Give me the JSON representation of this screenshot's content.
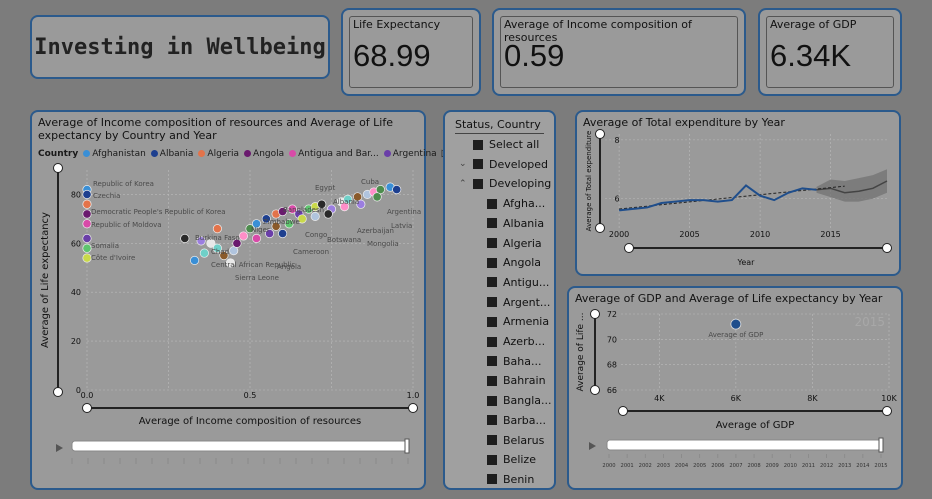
{
  "dashboard_title": "Investing in Wellbeing",
  "kpis": [
    {
      "label": "Life Expectancy",
      "value": "68.99"
    },
    {
      "label": "Average of Income composition of resources",
      "value": "0.59"
    },
    {
      "label": "Average of GDP",
      "value": "6.34K"
    }
  ],
  "scatter": {
    "title": "Average of Income composition of resources and Average of Life expectancy by Country and Year",
    "legend_label": "Country",
    "legend_items": [
      {
        "name": "Afghanistan",
        "color": "#3a8fd6"
      },
      {
        "name": "Albania",
        "color": "#1d3f8f"
      },
      {
        "name": "Algeria",
        "color": "#e3734a"
      },
      {
        "name": "Angola",
        "color": "#6a1a6e"
      },
      {
        "name": "Antigua and Bar...",
        "color": "#d84aa8"
      },
      {
        "name": "Argentina",
        "color": "#6a3ea8"
      }
    ],
    "point_labels": [
      "Republic of Korea",
      "Czechia",
      "Democratic People's Republic of Korea",
      "Republic of Moldova",
      "Somalia",
      "Côte d'Ivoire",
      "Egypt",
      "Cuba",
      "Bangladesh",
      "Zimbabwe",
      "Burkina Faso",
      "Chad",
      "Central African Republic",
      "Sierra Leone",
      "Angola",
      "Cameroon",
      "Botswana",
      "Mongolia",
      "Latvia",
      "Argentina",
      "Niger",
      "Congo",
      "Azerbaijan",
      "Albania"
    ],
    "xlabel": "Average of Income composition of resources",
    "ylabel": "Average of Life expectancy",
    "x_ticks": [
      "0.0",
      "0.5",
      "1.0"
    ],
    "y_ticks": [
      "80",
      "60",
      "40",
      "20",
      "0"
    ]
  },
  "slicer": {
    "header": "Status, Country",
    "items": [
      {
        "label": "Select all",
        "level": 0,
        "caret": ""
      },
      {
        "label": "Developed",
        "level": 0,
        "caret": "⌄"
      },
      {
        "label": "Developing",
        "level": 0,
        "caret": "⌃"
      },
      {
        "label": "Afgha...",
        "level": 1,
        "caret": ""
      },
      {
        "label": "Albania",
        "level": 1,
        "caret": ""
      },
      {
        "label": "Algeria",
        "level": 1,
        "caret": ""
      },
      {
        "label": "Angola",
        "level": 1,
        "caret": ""
      },
      {
        "label": "Antigu...",
        "level": 1,
        "caret": ""
      },
      {
        "label": "Argent...",
        "level": 1,
        "caret": ""
      },
      {
        "label": "Armenia",
        "level": 1,
        "caret": ""
      },
      {
        "label": "Azerb...",
        "level": 1,
        "caret": ""
      },
      {
        "label": "Baha...",
        "level": 1,
        "caret": ""
      },
      {
        "label": "Bahrain",
        "level": 1,
        "caret": ""
      },
      {
        "label": "Bangla...",
        "level": 1,
        "caret": ""
      },
      {
        "label": "Barba...",
        "level": 1,
        "caret": ""
      },
      {
        "label": "Belarus",
        "level": 1,
        "caret": ""
      },
      {
        "label": "Belize",
        "level": 1,
        "caret": ""
      },
      {
        "label": "Benin",
        "level": 1,
        "caret": ""
      }
    ]
  },
  "expenditure": {
    "title": "Average of Total expenditure by Year",
    "ylabel": "Average of Total expenditure",
    "xlabel": "Year",
    "x_ticks": [
      "2000",
      "2005",
      "2010",
      "2015"
    ],
    "y_ticks": [
      "8",
      "6"
    ],
    "line_color": "#1f4e8c"
  },
  "gdp_chart": {
    "title": "Average of GDP and Average of Life expectancy by Year",
    "ylabel": "Average of Life ...",
    "xlabel": "Average of GDP",
    "x_ticks": [
      "4K",
      "6K",
      "8K",
      "10K"
    ],
    "y_ticks": [
      "72",
      "70",
      "68",
      "66"
    ],
    "point_label": "Average of GDP",
    "watermark": "2015",
    "timeline_years": [
      "2000",
      "2001",
      "2002",
      "2003",
      "2004",
      "2005",
      "2006",
      "2007",
      "2008",
      "2009",
      "2010",
      "2011",
      "2012",
      "2013",
      "2014",
      "2015"
    ]
  },
  "chart_data": [
    {
      "type": "scatter",
      "title": "Average of Income composition of resources and Average of Life expectancy by Country and Year",
      "xlabel": "Average of Income composition of resources",
      "ylabel": "Average of Life expectancy",
      "xlim": [
        0,
        1
      ],
      "ylim": [
        0,
        90
      ],
      "series": [
        {
          "name": "Countries",
          "points": [
            [
              0.0,
              82
            ],
            [
              0.0,
              80
            ],
            [
              0.0,
              76
            ],
            [
              0.0,
              72
            ],
            [
              0.0,
              68
            ],
            [
              0.0,
              62
            ],
            [
              0.0,
              58
            ],
            [
              0.0,
              54
            ],
            [
              0.3,
              62
            ],
            [
              0.35,
              61
            ],
            [
              0.38,
              60
            ],
            [
              0.4,
              58
            ],
            [
              0.42,
              55
            ],
            [
              0.45,
              57
            ],
            [
              0.48,
              63
            ],
            [
              0.5,
              66
            ],
            [
              0.52,
              68
            ],
            [
              0.55,
              70
            ],
            [
              0.58,
              72
            ],
            [
              0.6,
              73
            ],
            [
              0.63,
              74
            ],
            [
              0.65,
              72
            ],
            [
              0.68,
              74
            ],
            [
              0.7,
              75
            ],
            [
              0.72,
              76
            ],
            [
              0.75,
              74
            ],
            [
              0.78,
              77
            ],
            [
              0.8,
              78
            ],
            [
              0.83,
              79
            ],
            [
              0.86,
              80
            ],
            [
              0.88,
              81
            ],
            [
              0.9,
              82
            ],
            [
              0.93,
              83
            ],
            [
              0.95,
              82
            ],
            [
              0.4,
              66
            ],
            [
              0.46,
              60
            ],
            [
              0.52,
              62
            ],
            [
              0.56,
              64
            ],
            [
              0.62,
              68
            ],
            [
              0.66,
              70
            ],
            [
              0.74,
              72
            ],
            [
              0.84,
              76
            ],
            [
              0.44,
              52
            ],
            [
              0.36,
              56
            ],
            [
              0.58,
              67
            ],
            [
              0.7,
              71
            ],
            [
              0.79,
              75
            ],
            [
              0.89,
              79
            ],
            [
              0.33,
              53
            ],
            [
              0.6,
              64
            ]
          ]
        }
      ]
    },
    {
      "type": "line",
      "title": "Average of Total expenditure by Year",
      "xlabel": "Year",
      "ylabel": "Average of Total expenditure",
      "x": [
        2000,
        2001,
        2002,
        2003,
        2004,
        2005,
        2006,
        2007,
        2008,
        2009,
        2010,
        2011,
        2012,
        2013,
        2014
      ],
      "series": [
        {
          "name": "Average of Total expenditure",
          "values": [
            5.6,
            5.65,
            5.7,
            5.85,
            5.9,
            5.95,
            5.95,
            5.9,
            5.95,
            6.45,
            6.1,
            5.95,
            6.2,
            6.35,
            6.3
          ]
        }
      ],
      "forecast": {
        "x": [
          2014,
          2015,
          2016,
          2017,
          2018,
          2019
        ],
        "values": [
          6.3,
          6.35,
          6.2,
          6.25,
          6.35,
          6.6
        ],
        "upper": [
          6.4,
          6.65,
          6.6,
          6.7,
          6.8,
          7.0
        ],
        "lower": [
          6.2,
          6.05,
          5.9,
          5.9,
          6.0,
          6.2
        ]
      },
      "xlim": [
        1999,
        2019
      ],
      "ylim": [
        5,
        8.2
      ],
      "trendline": true
    },
    {
      "type": "scatter",
      "title": "Average of GDP and Average of Life expectancy by Year",
      "xlabel": "Average of GDP",
      "ylabel": "Average of Life expectancy",
      "xlim": [
        3000,
        10000
      ],
      "ylim": [
        66,
        72
      ],
      "series": [
        {
          "name": "Average of GDP",
          "points": [
            [
              6000,
              71.2
            ]
          ]
        }
      ]
    }
  ]
}
